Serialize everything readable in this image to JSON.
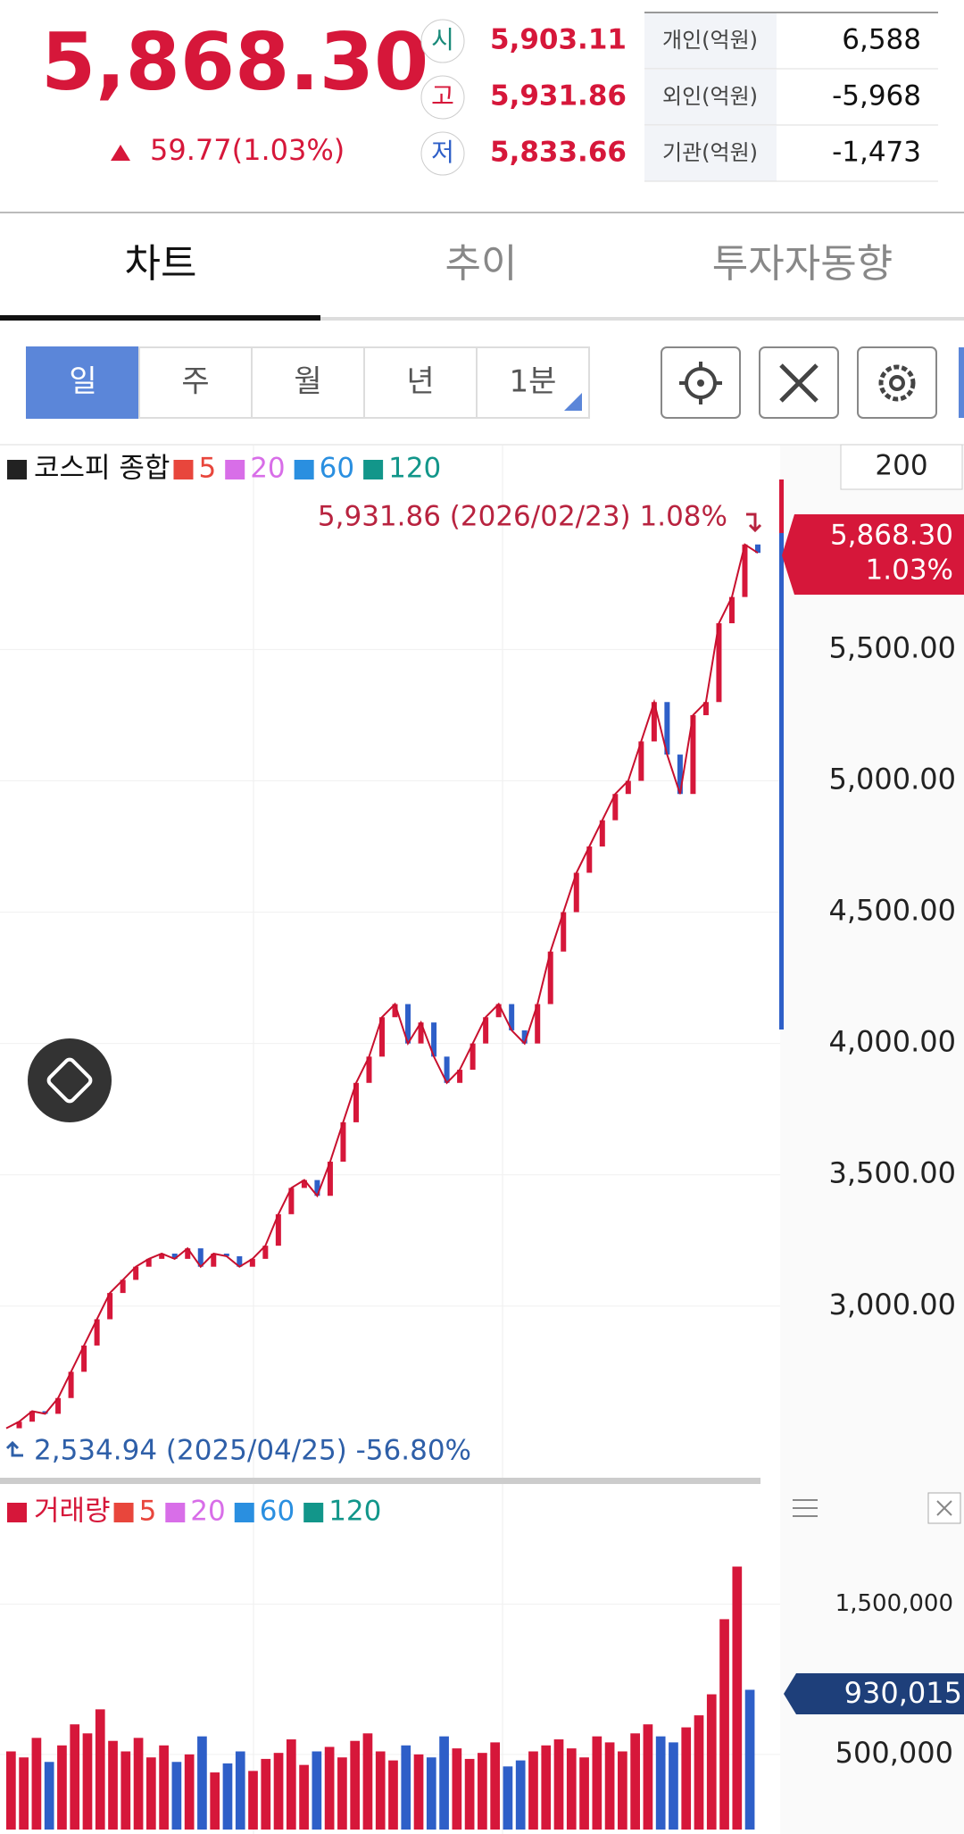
{
  "header": {
    "price": "5,868.30",
    "change": "59.77(1.03%)",
    "ohl": [
      {
        "label": "시",
        "value": "5,903.11"
      },
      {
        "label": "고",
        "value": "5,931.86"
      },
      {
        "label": "저",
        "value": "5,833.66"
      }
    ],
    "investors": [
      {
        "label": "개인(억원)",
        "value": "6,588"
      },
      {
        "label": "외인(억원)",
        "value": "-5,968"
      },
      {
        "label": "기관(억원)",
        "value": "-1,473"
      }
    ]
  },
  "tabs": [
    "차트",
    "추이",
    "투자자동향"
  ],
  "periods": [
    "일",
    "주",
    "월",
    "년",
    "1분"
  ],
  "chart_data": [
    {
      "type": "line",
      "zoom": "200",
      "series": [
        {
          "name": "코스피 종합",
          "color": "#c8102e",
          "values": [
            2535,
            2560,
            2600,
            2590,
            2650,
            2750,
            2850,
            2950,
            3050,
            3100,
            3150,
            3180,
            3200,
            3180,
            3220,
            3150,
            3200,
            3190,
            3150,
            3180,
            3230,
            3350,
            3450,
            3480,
            3420,
            3550,
            3700,
            3850,
            3950,
            4100,
            4150,
            4000,
            4080,
            3950,
            3850,
            3900,
            4000,
            4100,
            4150,
            4050,
            4000,
            4150,
            4350,
            4500,
            4650,
            4750,
            4850,
            4950,
            5000,
            5150,
            5300,
            5100,
            4950,
            5250,
            5300,
            5600,
            5700,
            5900,
            5868
          ]
        }
      ],
      "ma_legend": [
        {
          "name": "5",
          "color": "#e8463c"
        },
        {
          "name": "20",
          "color": "#d86ee8"
        },
        {
          "name": "60",
          "color": "#2a8fe0"
        },
        {
          "name": "120",
          "color": "#12968a"
        }
      ],
      "high_annotation": "5,931.86 (2026/02/23) 1.08%",
      "low_annotation": "2,534.94 (2025/04/25) -56.80%",
      "last_change": "1.03%",
      "ylim": [
        2350,
        6280
      ],
      "yticks": [
        {
          "value": 3000,
          "label": "3,000.00"
        },
        {
          "value": 3500,
          "label": "3,500.00"
        },
        {
          "value": 4000,
          "label": "4,000.00"
        },
        {
          "value": 4500,
          "label": "4,500.00"
        },
        {
          "value": 5000,
          "label": "5,000.00"
        },
        {
          "value": 5500,
          "label": "5,500.00"
        }
      ]
    },
    {
      "type": "bar",
      "series": [
        {
          "name": "거래량",
          "color": "#c8102e",
          "values": [
            520000,
            480000,
            610000,
            450000,
            560000,
            700000,
            640000,
            800000,
            590000,
            520000,
            610000,
            480000,
            560000,
            450000,
            500000,
            620000,
            380000,
            440000,
            520000,
            390000,
            470000,
            510000,
            600000,
            430000,
            520000,
            550000,
            480000,
            590000,
            640000,
            520000,
            460000,
            560000,
            500000,
            480000,
            620000,
            540000,
            470000,
            510000,
            580000,
            420000,
            460000,
            520000,
            560000,
            600000,
            540000,
            480000,
            620000,
            580000,
            520000,
            640000,
            700000,
            620000,
            580000,
            680000,
            760000,
            900000,
            1400000,
            1750000,
            930015
          ]
        }
      ],
      "ma_legend": [
        {
          "name": "5",
          "color": "#e8463c"
        },
        {
          "name": "20",
          "color": "#d86ee8"
        },
        {
          "name": "60",
          "color": "#2a8fe0"
        },
        {
          "name": "120",
          "color": "#12968a"
        }
      ],
      "last_label": "930,015",
      "ylim": [
        0,
        2270000
      ],
      "yticks": [
        {
          "value": 500000,
          "label": "500,000"
        },
        {
          "value": 1500000,
          "label": "1,500,000"
        }
      ]
    }
  ]
}
